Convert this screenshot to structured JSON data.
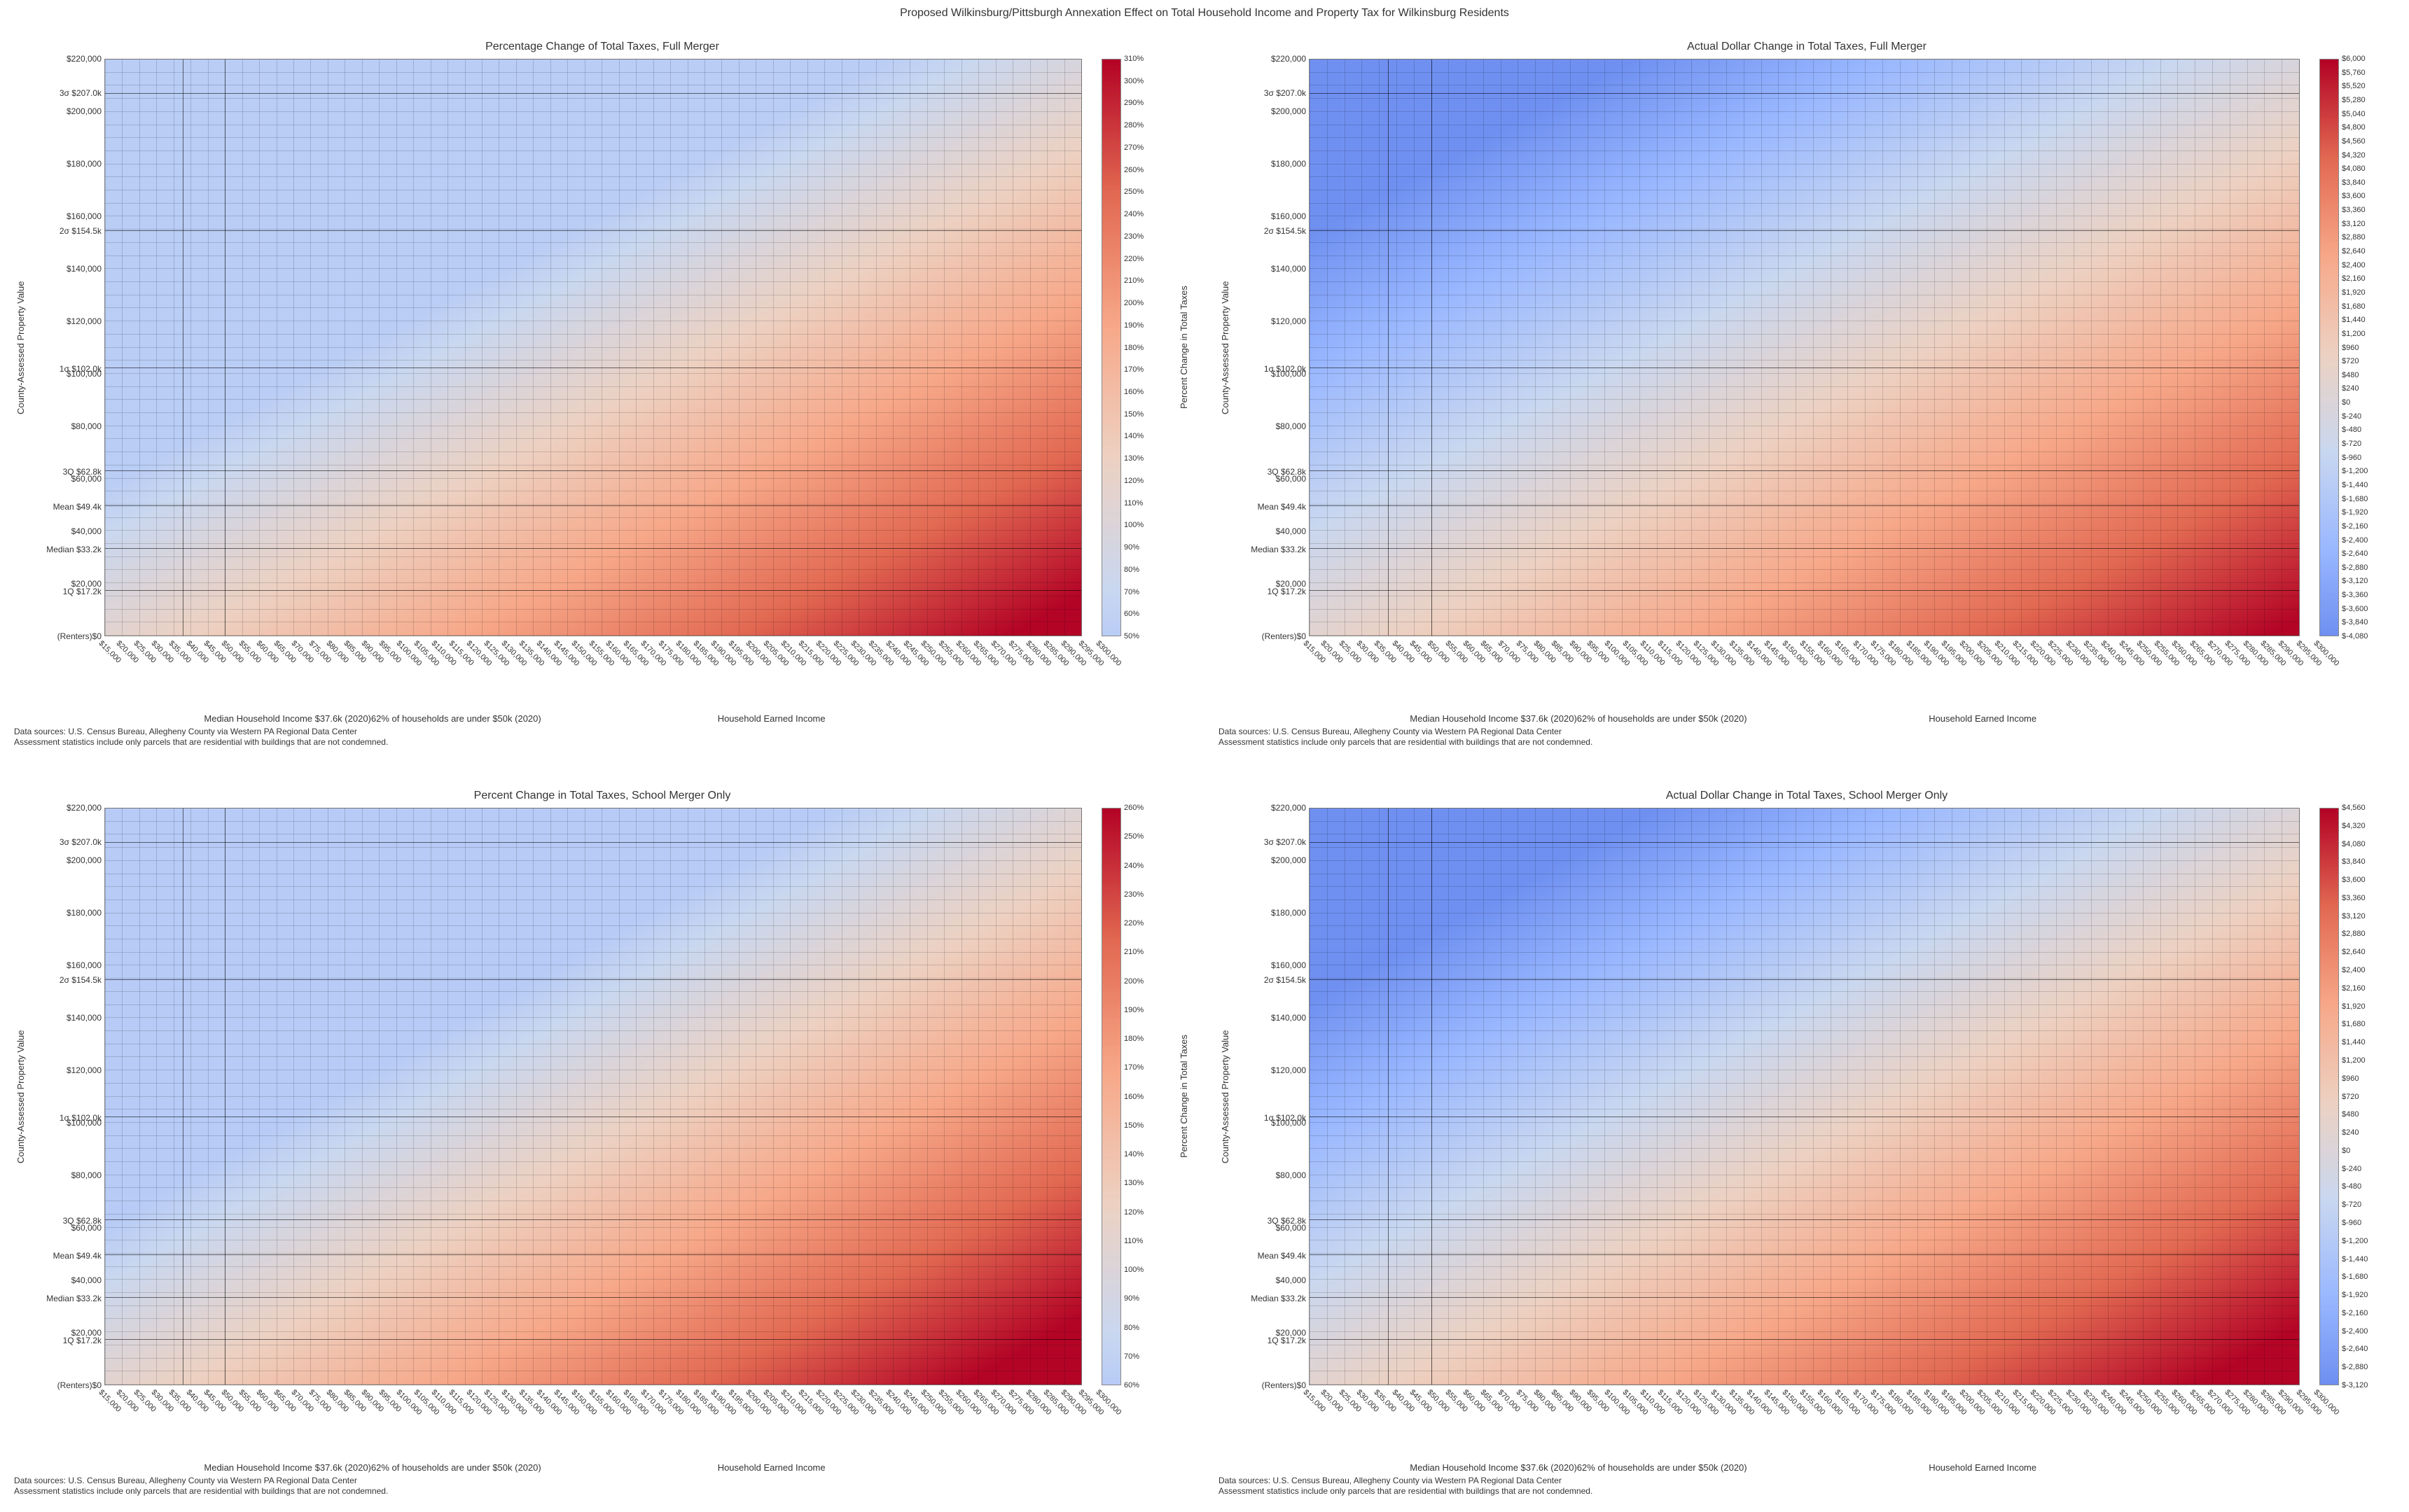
{
  "main_title": "Proposed Wilkinsburg/Pittsburgh Annexation Effect on Total Household Income and Property Tax for Wilkinsburg Residents",
  "bwr_gradient_stops": [
    "#3b4cc0",
    "#6a8bef",
    "#9ab8ff",
    "#c9d7f0",
    "#edd1c2",
    "#f7a889",
    "#e26952",
    "#b40426"
  ],
  "x_axis": {
    "min": 15000,
    "max": 300000,
    "major_ticks_step": 5000,
    "label_main": "Household Earned Income",
    "label_sub1": "Median Household Income $37.6k (2020)",
    "label_sub2": "62% of households are under $50k (2020)",
    "vlines": [
      37600,
      50000
    ]
  },
  "y_axis": {
    "min": 0,
    "max": 220000,
    "label": "County-Assessed Property Value",
    "ticks": [
      {
        "v": 0,
        "l": "(Renters)$0"
      },
      {
        "v": 17200,
        "l": "1Q $17.2k"
      },
      {
        "v": 20000,
        "l": "$20,000"
      },
      {
        "v": 33200,
        "l": "Median $33.2k"
      },
      {
        "v": 40000,
        "l": "$40,000"
      },
      {
        "v": 49400,
        "l": "Mean $49.4k"
      },
      {
        "v": 60000,
        "l": "$60,000"
      },
      {
        "v": 62800,
        "l": "3Q $62.8k"
      },
      {
        "v": 80000,
        "l": "$80,000"
      },
      {
        "v": 100000,
        "l": "$100,000"
      },
      {
        "v": 102000,
        "l": "1σ $102.0k"
      },
      {
        "v": 120000,
        "l": "$120,000"
      },
      {
        "v": 140000,
        "l": "$140,000"
      },
      {
        "v": 154500,
        "l": "2σ $154.5k"
      },
      {
        "v": 160000,
        "l": "$160,000"
      },
      {
        "v": 180000,
        "l": "$180,000"
      },
      {
        "v": 200000,
        "l": "$200,000"
      },
      {
        "v": 207000,
        "l": "3σ $207.0k"
      },
      {
        "v": 220000,
        "l": "$220,000"
      }
    ],
    "hlines": [
      17200,
      33200,
      49400,
      62800,
      102000,
      154500,
      207000
    ],
    "hlines_minor_step": 5000
  },
  "panels": [
    {
      "id": "p1",
      "title": "Percentage Change of Total Taxes, Full Merger",
      "cbar_label": "Percent Change in Total Taxes",
      "cbar_min": 50,
      "cbar_max": 310,
      "cbar_step": 10,
      "cbar_fmt": "pct",
      "heat_center": 100,
      "heat_type": "pct_full"
    },
    {
      "id": "p2",
      "title": "Actual Dollar Change in Total Taxes, Full Merger",
      "cbar_label": "",
      "cbar_min": -4080,
      "cbar_max": 6000,
      "cbar_step": 240,
      "cbar_fmt": "usd_neg",
      "heat_center": 0,
      "heat_type": "usd_full"
    },
    {
      "id": "p3",
      "title": "Percent Change in Total Taxes, School Merger Only",
      "cbar_label": "Percent Change in Total Taxes",
      "cbar_min": 60,
      "cbar_max": 260,
      "cbar_step": 10,
      "cbar_fmt": "pct",
      "heat_center": 100,
      "heat_type": "pct_school"
    },
    {
      "id": "p4",
      "title": "Actual Dollar Change in Total Taxes, School Merger Only",
      "cbar_label": "",
      "cbar_min": -3120,
      "cbar_max": 4560,
      "cbar_step": 240,
      "cbar_fmt": "usd_neg",
      "heat_center": 0,
      "heat_type": "usd_school"
    }
  ],
  "heat_params": {
    "pct_full": {
      "a": 0.00075,
      "b": -0.00105,
      "c": 100
    },
    "usd_full": {
      "a": 0.0205,
      "b": -0.0285,
      "c": 0
    },
    "pct_school": {
      "a": 0.0006,
      "b": -0.0008,
      "c": 100
    },
    "usd_school": {
      "a": 0.0168,
      "b": -0.0228,
      "c": 0
    }
  },
  "footnote_line1": "Data sources: U.S. Census Bureau, Allegheny County via Western PA Regional Data Center",
  "footnote_line2": "Assessment statistics include only parcels that are residential with buildings that are not condemned."
}
